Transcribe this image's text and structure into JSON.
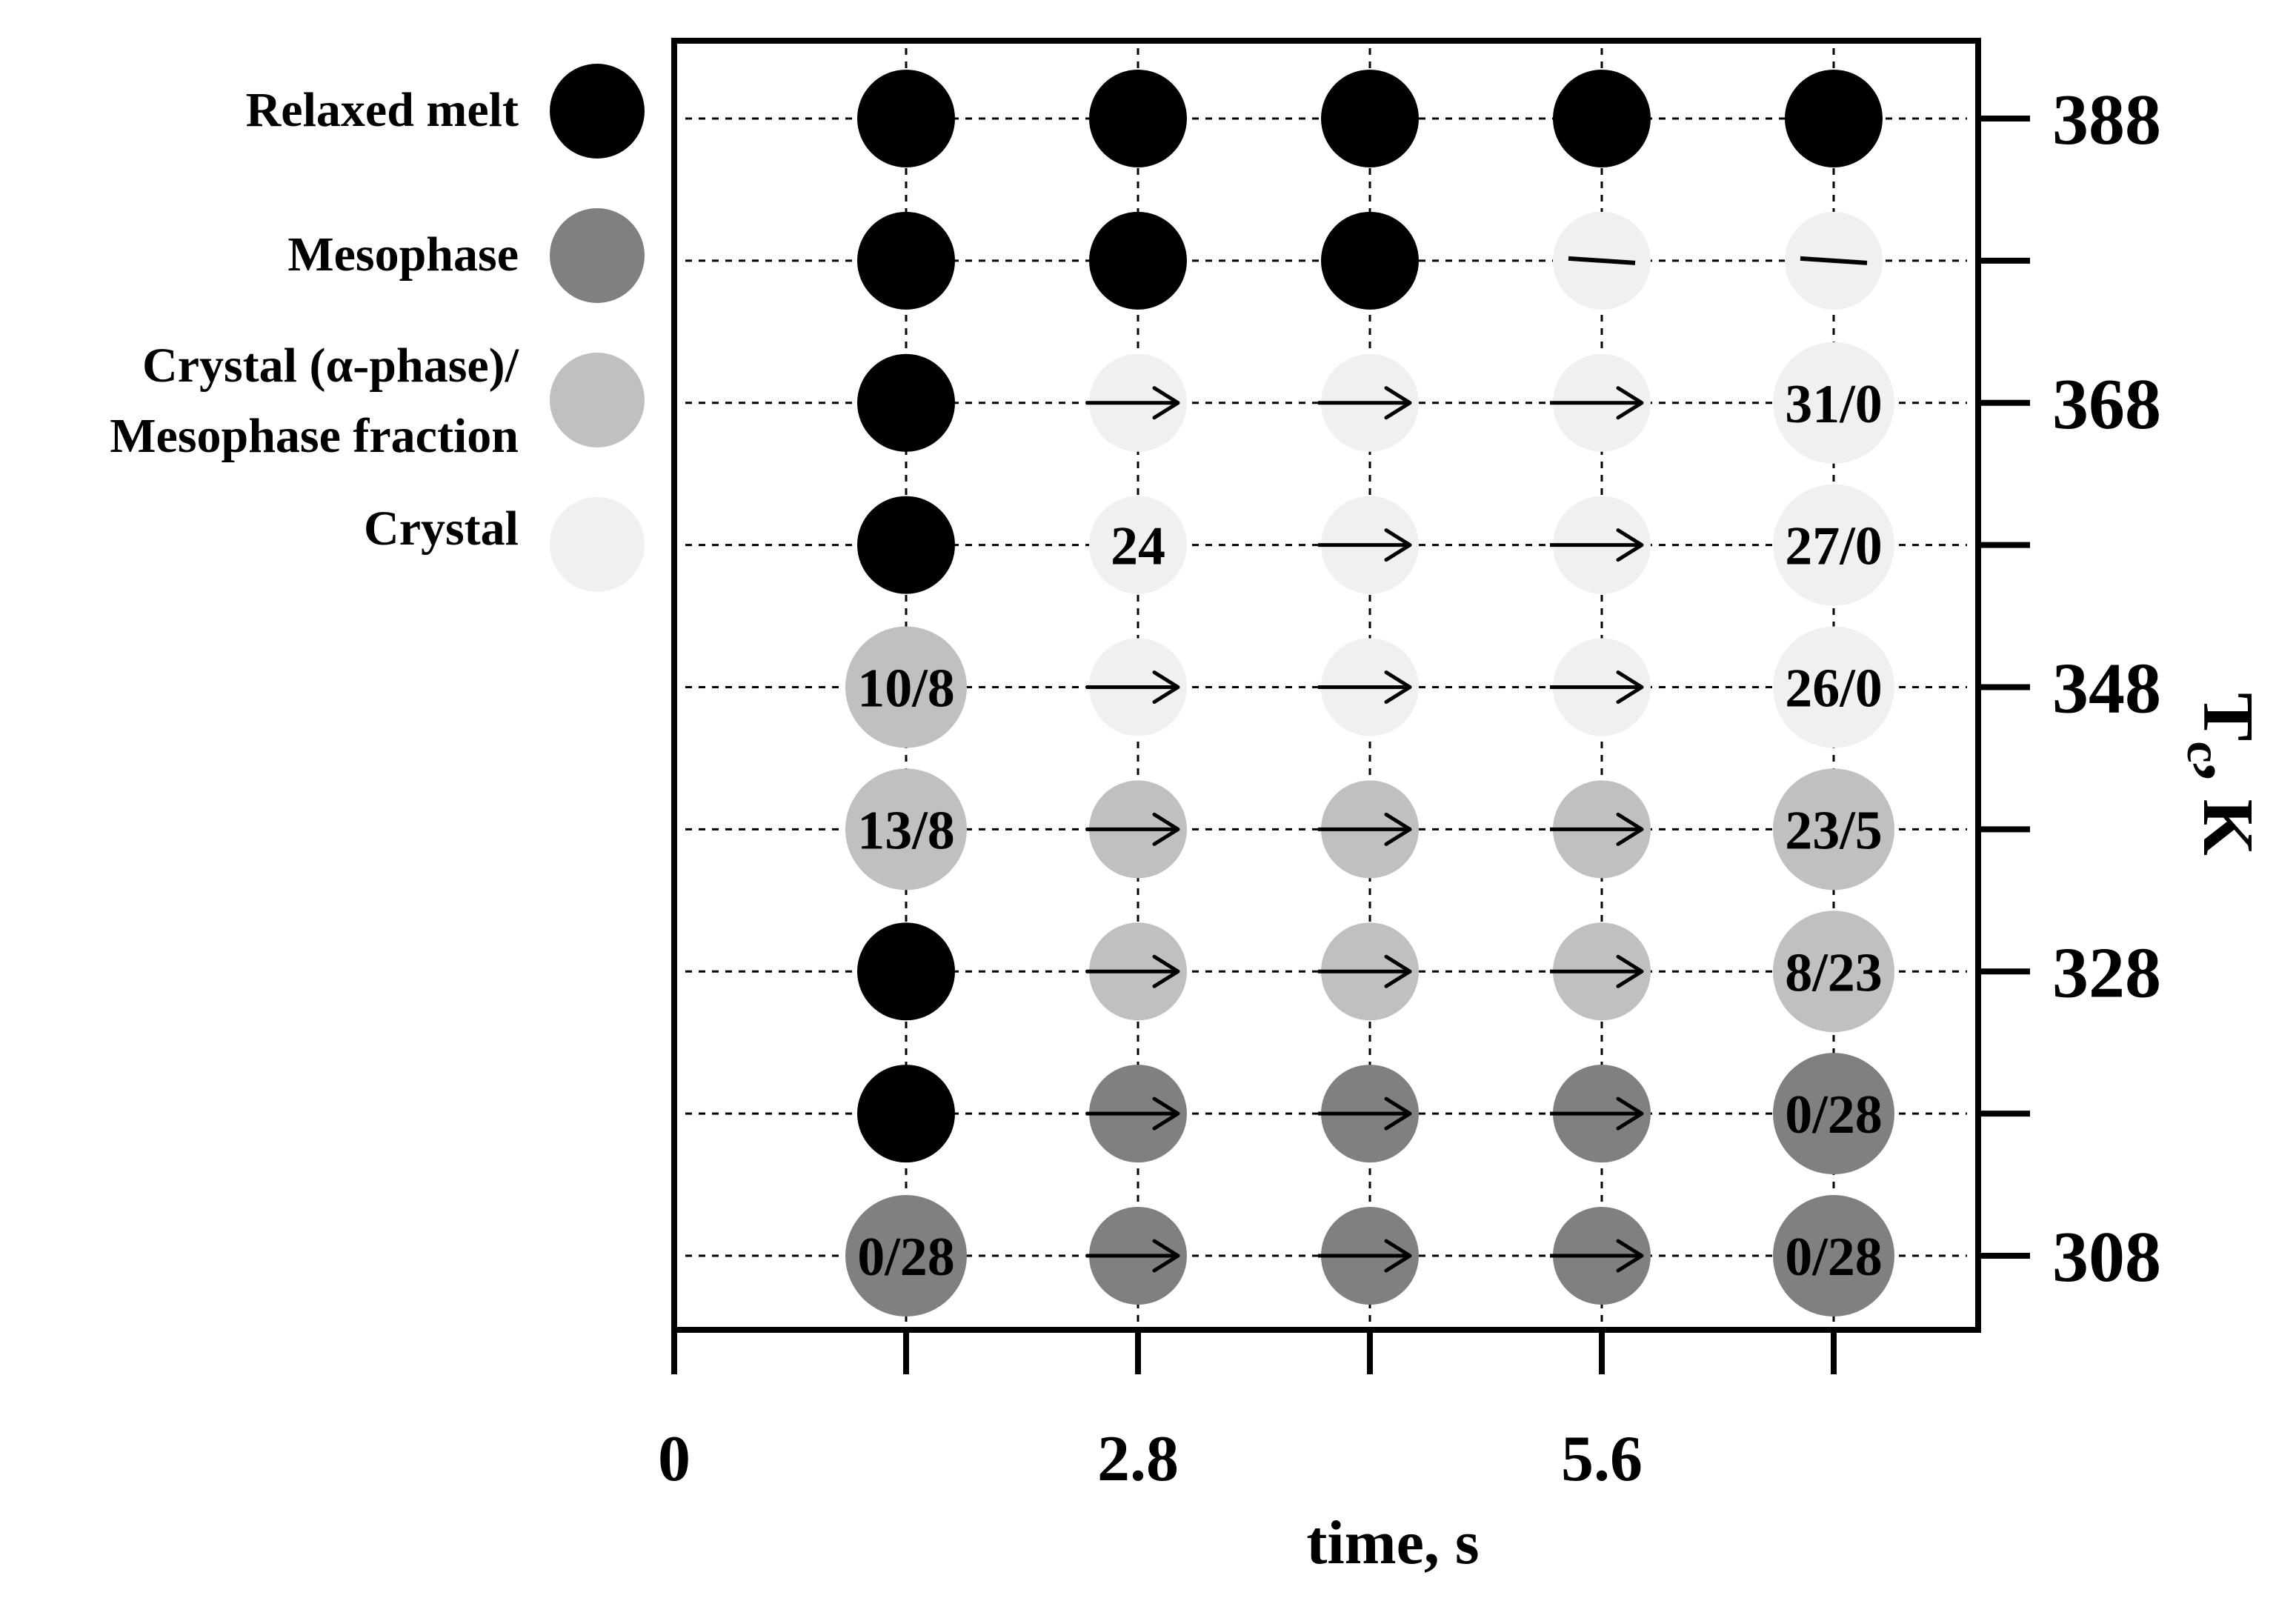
{
  "colors": {
    "relaxed_melt": "#000000",
    "mesophase": "#808080",
    "crystal_mesophase": "#c0c0c0",
    "crystal": "#f0f0f0",
    "axis": "#000000",
    "background": "#ffffff"
  },
  "chart_data": {
    "type": "scatter",
    "title": "",
    "xlabel": "time, s",
    "ylabel": "Tc, K",
    "ylabel_main": "T",
    "ylabel_sub": "c",
    "ylabel_suffix": ", K",
    "x_ticks": [
      0,
      2.8,
      5.6
    ],
    "x_tick_labels": [
      "0",
      "2.8",
      "5.6"
    ],
    "x_marker_ticks": [
      1.4,
      2.8,
      4.2,
      5.6,
      7.0
    ],
    "xlim": [
      0,
      7.7
    ],
    "y_marker_ticks": [
      388,
      378,
      368,
      358,
      348,
      338,
      328,
      318,
      308
    ],
    "y_tick_labels": [
      "388",
      "368",
      "348",
      "328",
      "308"
    ],
    "y_tick_label_values": [
      388,
      368,
      348,
      328,
      308
    ],
    "ylim": [
      303,
      393
    ],
    "legend_position": "left",
    "legend": [
      {
        "key": "relaxed_melt",
        "lines": [
          "Relaxed melt"
        ],
        "color": "#000000"
      },
      {
        "key": "mesophase",
        "lines": [
          "Mesophase"
        ],
        "color": "#808080"
      },
      {
        "key": "crystal_mesophase",
        "lines": [
          "Crystal (α-phase)/",
          "Mesophase fraction"
        ],
        "color": "#c0c0c0"
      },
      {
        "key": "crystal",
        "lines": [
          "Crystal"
        ],
        "color": "#f0f0f0"
      }
    ],
    "points": [
      {
        "x": 1.4,
        "y": 388,
        "state": "relaxed_melt",
        "size": "normal",
        "label": "",
        "mark": ""
      },
      {
        "x": 2.8,
        "y": 388,
        "state": "relaxed_melt",
        "size": "normal",
        "label": "",
        "mark": ""
      },
      {
        "x": 4.2,
        "y": 388,
        "state": "relaxed_melt",
        "size": "normal",
        "label": "",
        "mark": ""
      },
      {
        "x": 5.6,
        "y": 388,
        "state": "relaxed_melt",
        "size": "normal",
        "label": "",
        "mark": ""
      },
      {
        "x": 7.0,
        "y": 388,
        "state": "relaxed_melt",
        "size": "normal",
        "label": "",
        "mark": ""
      },
      {
        "x": 1.4,
        "y": 378,
        "state": "relaxed_melt",
        "size": "normal",
        "label": "",
        "mark": ""
      },
      {
        "x": 2.8,
        "y": 378,
        "state": "relaxed_melt",
        "size": "normal",
        "label": "",
        "mark": ""
      },
      {
        "x": 4.2,
        "y": 378,
        "state": "relaxed_melt",
        "size": "normal",
        "label": "",
        "mark": ""
      },
      {
        "x": 5.6,
        "y": 378,
        "state": "crystal",
        "size": "normal",
        "label": "",
        "mark": "dash"
      },
      {
        "x": 7.0,
        "y": 378,
        "state": "crystal",
        "size": "normal",
        "label": "",
        "mark": "dash"
      },
      {
        "x": 1.4,
        "y": 368,
        "state": "relaxed_melt",
        "size": "normal",
        "label": "",
        "mark": ""
      },
      {
        "x": 2.8,
        "y": 368,
        "state": "crystal",
        "size": "normal",
        "label": "",
        "mark": "arrow"
      },
      {
        "x": 4.2,
        "y": 368,
        "state": "crystal",
        "size": "normal",
        "label": "",
        "mark": "arrow"
      },
      {
        "x": 5.6,
        "y": 368,
        "state": "crystal",
        "size": "normal",
        "label": "",
        "mark": "arrow"
      },
      {
        "x": 7.0,
        "y": 368,
        "state": "crystal",
        "size": "large",
        "label": "31/0",
        "mark": ""
      },
      {
        "x": 1.4,
        "y": 358,
        "state": "relaxed_melt",
        "size": "normal",
        "label": "",
        "mark": ""
      },
      {
        "x": 2.8,
        "y": 358,
        "state": "crystal",
        "size": "normal",
        "label": "24",
        "mark": ""
      },
      {
        "x": 4.2,
        "y": 358,
        "state": "crystal",
        "size": "normal",
        "label": "",
        "mark": "arrow"
      },
      {
        "x": 5.6,
        "y": 358,
        "state": "crystal",
        "size": "normal",
        "label": "",
        "mark": "arrow"
      },
      {
        "x": 7.0,
        "y": 358,
        "state": "crystal",
        "size": "large",
        "label": "27/0",
        "mark": ""
      },
      {
        "x": 1.4,
        "y": 348,
        "state": "crystal_mesophase",
        "size": "large",
        "label": "10/8",
        "mark": ""
      },
      {
        "x": 2.8,
        "y": 348,
        "state": "crystal",
        "size": "normal",
        "label": "",
        "mark": "arrow"
      },
      {
        "x": 4.2,
        "y": 348,
        "state": "crystal",
        "size": "normal",
        "label": "",
        "mark": "arrow"
      },
      {
        "x": 5.6,
        "y": 348,
        "state": "crystal",
        "size": "normal",
        "label": "",
        "mark": "arrow"
      },
      {
        "x": 7.0,
        "y": 348,
        "state": "crystal",
        "size": "large",
        "label": "26/0",
        "mark": ""
      },
      {
        "x": 1.4,
        "y": 338,
        "state": "crystal_mesophase",
        "size": "large",
        "label": "13/8",
        "mark": ""
      },
      {
        "x": 2.8,
        "y": 338,
        "state": "crystal_mesophase",
        "size": "normal",
        "label": "",
        "mark": "arrow"
      },
      {
        "x": 4.2,
        "y": 338,
        "state": "crystal_mesophase",
        "size": "normal",
        "label": "",
        "mark": "arrow"
      },
      {
        "x": 5.6,
        "y": 338,
        "state": "crystal_mesophase",
        "size": "normal",
        "label": "",
        "mark": "arrow"
      },
      {
        "x": 7.0,
        "y": 338,
        "state": "crystal_mesophase",
        "size": "large",
        "label": "23/5",
        "mark": ""
      },
      {
        "x": 1.4,
        "y": 328,
        "state": "relaxed_melt",
        "size": "normal",
        "label": "",
        "mark": ""
      },
      {
        "x": 2.8,
        "y": 328,
        "state": "crystal_mesophase",
        "size": "normal",
        "label": "",
        "mark": "arrow"
      },
      {
        "x": 4.2,
        "y": 328,
        "state": "crystal_mesophase",
        "size": "normal",
        "label": "",
        "mark": "arrow"
      },
      {
        "x": 5.6,
        "y": 328,
        "state": "crystal_mesophase",
        "size": "normal",
        "label": "",
        "mark": "arrow"
      },
      {
        "x": 7.0,
        "y": 328,
        "state": "crystal_mesophase",
        "size": "large",
        "label": "8/23",
        "mark": ""
      },
      {
        "x": 1.4,
        "y": 318,
        "state": "relaxed_melt",
        "size": "normal",
        "label": "",
        "mark": ""
      },
      {
        "x": 2.8,
        "y": 318,
        "state": "mesophase",
        "size": "normal",
        "label": "",
        "mark": "arrow"
      },
      {
        "x": 4.2,
        "y": 318,
        "state": "mesophase",
        "size": "normal",
        "label": "",
        "mark": "arrow"
      },
      {
        "x": 5.6,
        "y": 318,
        "state": "mesophase",
        "size": "normal",
        "label": "",
        "mark": "arrow"
      },
      {
        "x": 7.0,
        "y": 318,
        "state": "mesophase",
        "size": "large",
        "label": "0/28",
        "mark": ""
      },
      {
        "x": 1.4,
        "y": 308,
        "state": "mesophase",
        "size": "large",
        "label": "0/28",
        "mark": ""
      },
      {
        "x": 2.8,
        "y": 308,
        "state": "mesophase",
        "size": "normal",
        "label": "",
        "mark": "arrow"
      },
      {
        "x": 4.2,
        "y": 308,
        "state": "mesophase",
        "size": "normal",
        "label": "",
        "mark": "arrow"
      },
      {
        "x": 5.6,
        "y": 308,
        "state": "mesophase",
        "size": "normal",
        "label": "",
        "mark": "arrow"
      },
      {
        "x": 7.0,
        "y": 308,
        "state": "mesophase",
        "size": "large",
        "label": "0/28",
        "mark": ""
      }
    ]
  }
}
